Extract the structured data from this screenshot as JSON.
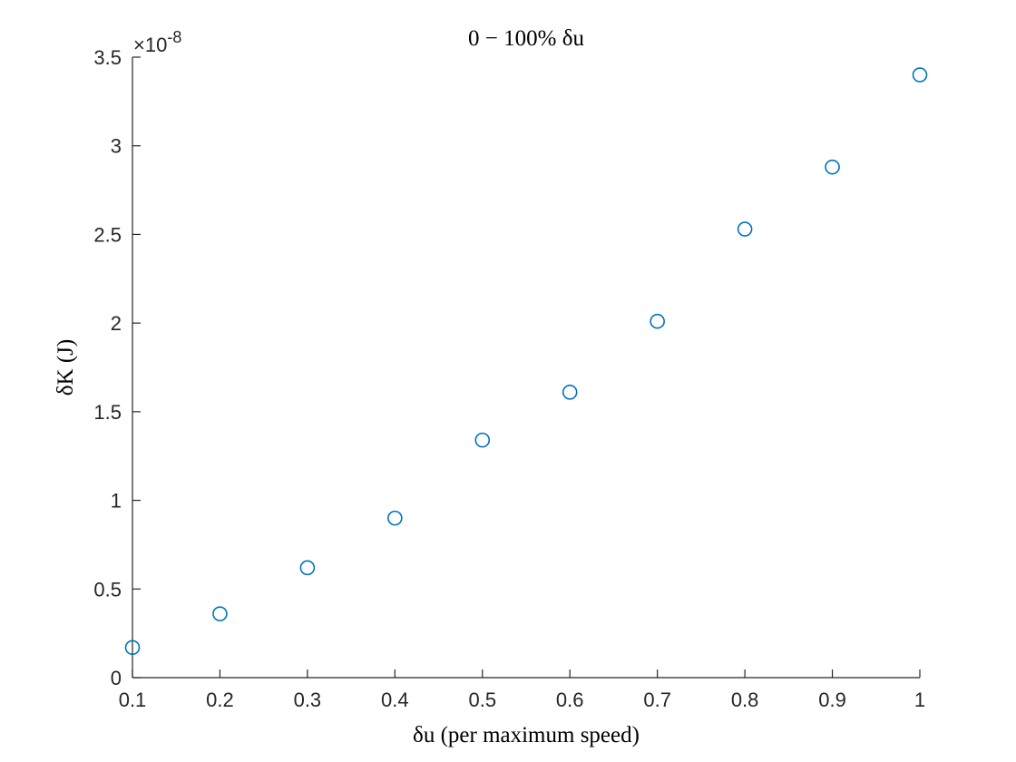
{
  "chart_data": {
    "type": "scatter",
    "title": "0 − 100% δu",
    "xlabel": "δu (per maximum speed)",
    "ylabel": "δK (J)",
    "y_exponent_label": "×10",
    "y_exponent_power": "-8",
    "xlim": [
      0.1,
      1.0
    ],
    "ylim": [
      0,
      3.5
    ],
    "x_ticks": [
      0.1,
      0.2,
      0.3,
      0.4,
      0.5,
      0.6,
      0.7,
      0.8,
      0.9,
      1.0
    ],
    "x_tick_labels": [
      "0.1",
      "0.2",
      "0.3",
      "0.4",
      "0.5",
      "0.6",
      "0.7",
      "0.8",
      "0.9",
      "1"
    ],
    "y_ticks": [
      0,
      0.5,
      1,
      1.5,
      2,
      2.5,
      3,
      3.5
    ],
    "y_tick_labels": [
      "0",
      "0.5",
      "1",
      "1.5",
      "2",
      "2.5",
      "3",
      "3.5"
    ],
    "grid": false,
    "marker": "open-circle",
    "marker_color": "#0072BD",
    "series": [
      {
        "x": [
          0.1,
          0.2,
          0.3,
          0.4,
          0.5,
          0.6,
          0.7,
          0.8,
          0.9,
          1.0
        ],
        "y": [
          0.17,
          0.36,
          0.62,
          0.9,
          1.34,
          1.61,
          2.01,
          2.53,
          2.88,
          3.4
        ]
      }
    ]
  }
}
